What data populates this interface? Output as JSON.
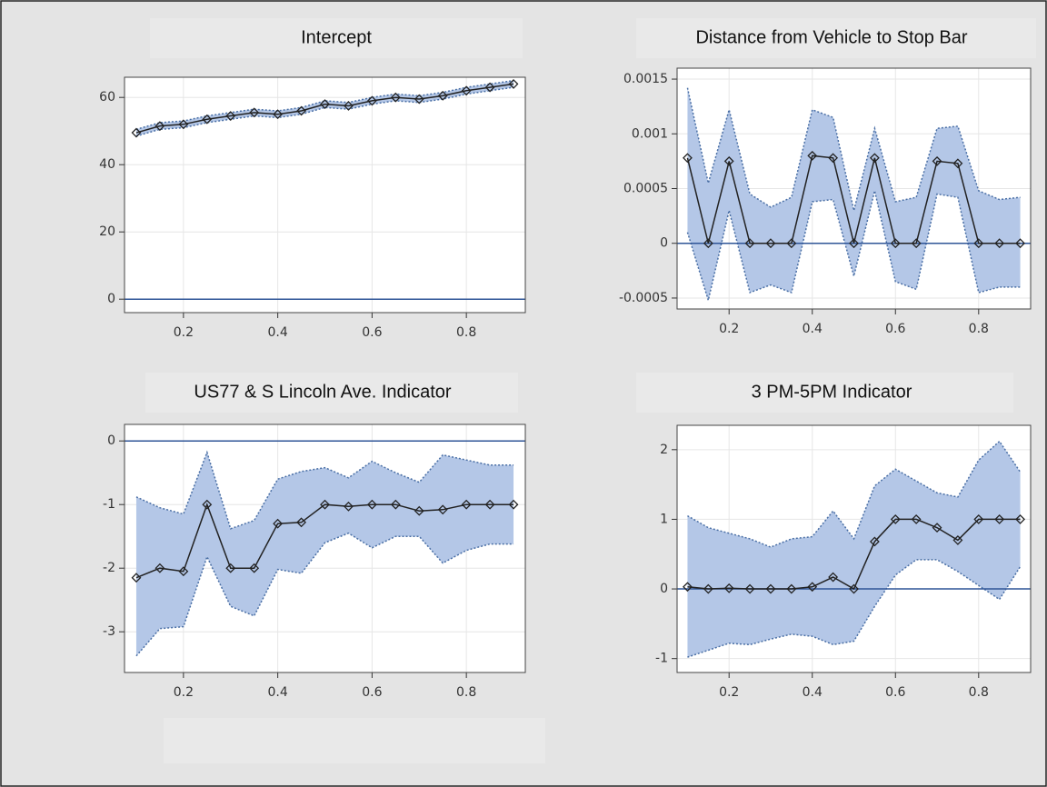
{
  "chart_data": [
    {
      "type": "line",
      "title": "Intercept",
      "x": [
        0.1,
        0.15,
        0.2,
        0.25,
        0.3,
        0.35,
        0.4,
        0.45,
        0.5,
        0.55,
        0.6,
        0.65,
        0.7,
        0.75,
        0.8,
        0.85,
        0.9
      ],
      "values": [
        49.5,
        51.5,
        52,
        53.5,
        54.5,
        55.5,
        55,
        56,
        58,
        57.5,
        59,
        60,
        59.5,
        60.5,
        62,
        63,
        64
      ],
      "lower": [
        48.5,
        50.5,
        51,
        52.5,
        53.5,
        54.5,
        54,
        55,
        57,
        56.5,
        58,
        59,
        58.5,
        59.5,
        61,
        62,
        63
      ],
      "upper": [
        50.5,
        52.5,
        53,
        54.5,
        55.5,
        56.5,
        56,
        57,
        59,
        58.5,
        60,
        61,
        60.5,
        61.5,
        63,
        64,
        65
      ],
      "xlim": [
        0.075,
        0.925
      ],
      "ylim": [
        -4,
        66
      ],
      "xticks": [
        0.2,
        0.4,
        0.6,
        0.8
      ],
      "yticks": [
        0,
        20,
        40,
        60
      ],
      "reference_line": 0,
      "grid": true,
      "line_color": "#222222",
      "band_color": "#b4c7e7",
      "reference_color": "#2f5597"
    },
    {
      "type": "line",
      "title": "Distance from Vehicle to Stop Bar",
      "x": [
        0.1,
        0.15,
        0.2,
        0.25,
        0.3,
        0.35,
        0.4,
        0.45,
        0.5,
        0.55,
        0.6,
        0.65,
        0.7,
        0.75,
        0.8,
        0.85,
        0.9
      ],
      "values": [
        0.00078,
        0,
        0.00075,
        0,
        0,
        0,
        0.0008,
        0.00078,
        0,
        0.00078,
        0,
        0,
        0.00075,
        0.00073,
        0,
        0,
        0
      ],
      "lower": [
        0.0001,
        -0.00052,
        0.0003,
        -0.00045,
        -0.00038,
        -0.00045,
        0.00038,
        0.0004,
        -0.0003,
        0.00048,
        -0.00035,
        -0.00042,
        0.00045,
        0.00042,
        -0.00045,
        -0.0004,
        -0.0004
      ],
      "upper": [
        0.00142,
        0.00055,
        0.00122,
        0.00045,
        0.00033,
        0.00042,
        0.00122,
        0.00115,
        0.0003,
        0.00105,
        0.00038,
        0.00042,
        0.00105,
        0.00107,
        0.00048,
        0.0004,
        0.00042
      ],
      "xlim": [
        0.075,
        0.925
      ],
      "ylim": [
        -0.0006,
        0.0016
      ],
      "xticks": [
        0.2,
        0.4,
        0.6,
        0.8
      ],
      "yticks": [
        -0.0005,
        0,
        0.0005,
        0.001,
        0.0015
      ],
      "reference_line": 0,
      "grid": true,
      "line_color": "#222222",
      "band_color": "#b4c7e7",
      "reference_color": "#2f5597"
    },
    {
      "type": "line",
      "title": "US77 & S Lincoln Ave. Indicator",
      "x": [
        0.1,
        0.15,
        0.2,
        0.25,
        0.3,
        0.35,
        0.4,
        0.45,
        0.5,
        0.55,
        0.6,
        0.65,
        0.7,
        0.75,
        0.8,
        0.85,
        0.9
      ],
      "values": [
        -2.15,
        -2,
        -2.05,
        -1,
        -2,
        -2,
        -1.3,
        -1.28,
        -1,
        -1.03,
        -1,
        -1,
        -1.1,
        -1.08,
        -1,
        -1,
        -1
      ],
      "lower": [
        -3.38,
        -2.95,
        -2.92,
        -1.82,
        -2.6,
        -2.75,
        -2.02,
        -2.08,
        -1.6,
        -1.45,
        -1.68,
        -1.5,
        -1.5,
        -1.92,
        -1.72,
        -1.62,
        -1.62
      ],
      "upper": [
        -0.88,
        -1.05,
        -1.15,
        -0.18,
        -1.38,
        -1.25,
        -0.6,
        -0.48,
        -0.42,
        -0.58,
        -0.32,
        -0.5,
        -0.65,
        -0.22,
        -0.3,
        -0.38,
        -0.38
      ],
      "xlim": [
        0.075,
        0.925
      ],
      "ylim": [
        -3.64,
        0.26
      ],
      "xticks": [
        0.2,
        0.4,
        0.6,
        0.8
      ],
      "yticks": [
        -3,
        -2,
        -1,
        0
      ],
      "reference_line": 0,
      "grid": true,
      "line_color": "#222222",
      "band_color": "#b4c7e7",
      "reference_color": "#2f5597"
    },
    {
      "type": "line",
      "title": "3 PM-5PM Indicator",
      "x": [
        0.1,
        0.15,
        0.2,
        0.25,
        0.3,
        0.35,
        0.4,
        0.45,
        0.5,
        0.55,
        0.6,
        0.65,
        0.7,
        0.75,
        0.8,
        0.85,
        0.9
      ],
      "values": [
        0.03,
        0,
        0.01,
        0,
        0,
        0,
        0.03,
        0.17,
        0,
        0.68,
        1,
        1,
        0.88,
        0.7,
        1,
        1,
        1
      ],
      "lower": [
        -0.98,
        -0.88,
        -0.78,
        -0.8,
        -0.72,
        -0.65,
        -0.68,
        -0.8,
        -0.75,
        -0.25,
        0.2,
        0.42,
        0.42,
        0.25,
        0.05,
        -0.15,
        0.32
      ],
      "upper": [
        1.05,
        0.88,
        0.8,
        0.72,
        0.6,
        0.72,
        0.75,
        1.12,
        0.72,
        1.48,
        1.72,
        1.55,
        1.38,
        1.32,
        1.85,
        2.12,
        1.68
      ],
      "xlim": [
        0.075,
        0.925
      ],
      "ylim": [
        -1.2,
        2.35
      ],
      "xticks": [
        0.2,
        0.4,
        0.6,
        0.8
      ],
      "yticks": [
        -1,
        0,
        1,
        2
      ],
      "reference_line": 0,
      "grid": true,
      "line_color": "#222222",
      "band_color": "#b4c7e7",
      "reference_color": "#2f5597"
    }
  ]
}
